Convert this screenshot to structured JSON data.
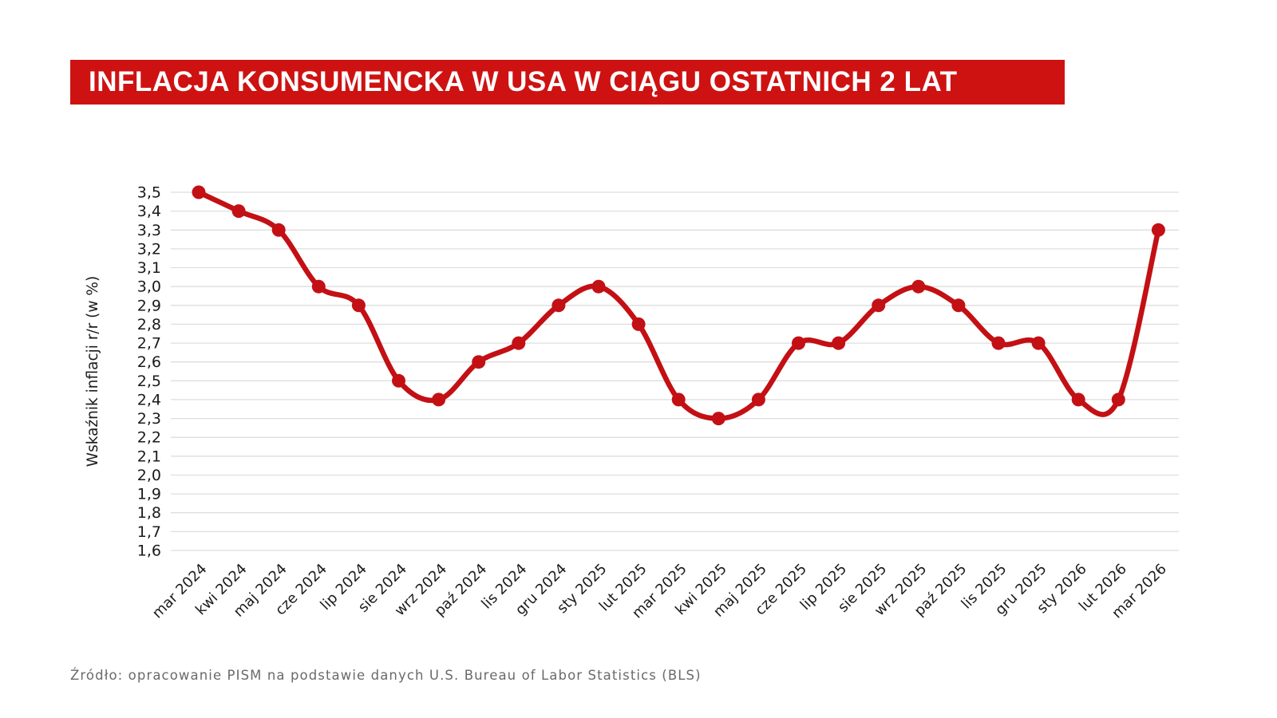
{
  "title": {
    "text": "INFLACJA KONSUMENCKA W USA W CIĄGU OSTATNICH 2 LAT",
    "bg_color": "#CE1212",
    "text_color": "#FFFFFF"
  },
  "source": "Źródło: opracowanie PISM na podstawie danych U.S. Bureau of Labor Statistics (BLS)",
  "chart_data": {
    "type": "line",
    "title": "INFLACJA KONSUMENCKA W USA W CIĄGU OSTATNICH 2 LAT",
    "xlabel": "",
    "ylabel": "Wskaźnik inflacji r/r (w %)",
    "categories": [
      "mar 2024",
      "kwi 2024",
      "maj 2024",
      "cze 2024",
      "lip 2024",
      "sie 2024",
      "wrz 2024",
      "paź 2024",
      "lis 2024",
      "gru 2024",
      "sty 2025",
      "lut 2025",
      "mar 2025",
      "kwi 2025",
      "maj 2025",
      "cze 2025",
      "lip 2025",
      "sie 2025",
      "wrz 2025",
      "paź 2025",
      "lis 2025",
      "gru 2025",
      "sty 2026",
      "lut 2026",
      "mar 2026"
    ],
    "values": [
      3.5,
      3.4,
      3.3,
      3.0,
      2.9,
      2.5,
      2.4,
      2.6,
      2.7,
      2.9,
      3.0,
      2.8,
      2.4,
      2.3,
      2.4,
      2.7,
      2.7,
      2.9,
      3.0,
      2.9,
      2.7,
      2.7,
      2.4,
      2.4,
      3.3
    ],
    "ylim": [
      1.6,
      3.5
    ],
    "ytick_step": 0.1,
    "ytick_labels": [
      "3,5",
      "3,4",
      "3,3",
      "3,2",
      "3,1",
      "3,0",
      "2,9",
      "2,8",
      "2,7",
      "2,6",
      "2,5",
      "2,4",
      "2,3",
      "2,2",
      "2,1",
      "2,0",
      "1,9",
      "1,8",
      "1,7",
      "1,6"
    ],
    "grid": true,
    "legend": false,
    "smoothing": true,
    "line_color": "#C31014",
    "point_color": "#C31014",
    "grid_color": "#DEDEDE",
    "tick_color": "#1B1B1B"
  }
}
